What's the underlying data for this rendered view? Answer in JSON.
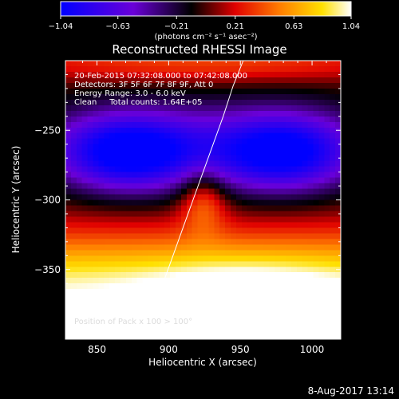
{
  "chart_data": {
    "type": "heatmap",
    "title": "Reconstructed RHESSI Image",
    "xlabel": "Heliocentric X (arcsec)",
    "ylabel": "Heliocentric Y (arcsec)",
    "xlim": [
      828,
      1020
    ],
    "ylim": [
      -400,
      -200
    ],
    "x_ticks": [
      850,
      900,
      950,
      1000
    ],
    "x_tick_labels": [
      "850",
      "900",
      "950",
      "1000"
    ],
    "y_ticks": [
      -250,
      -300,
      -350
    ],
    "y_tick_labels": [
      "−250",
      "−300",
      "−350"
    ],
    "colorbar": {
      "range": [
        -1.04,
        1.04
      ],
      "ticks": [
        -1.04,
        -0.63,
        -0.21,
        0.21,
        0.63,
        1.04
      ],
      "tick_labels": [
        "−1.04",
        "−0.63",
        "−0.21",
        "0.21",
        "0.63",
        "1.04"
      ],
      "unit_label": "(photons cm⁻² s⁻¹ asec⁻²)",
      "colormap": "blue-purple-black-red-orange-yellow-white"
    },
    "annotations": [
      "20-Feb-2015 07:32:08.000 to 07:42:08.000",
      "Detectors: 3F 5F 6F 7F 8F 9F, Att 0",
      "Energy Range: 3.0 - 6.0 keV",
      "Clean     Total counts: 1.64E+05"
    ],
    "limb_annotation": "Position of Pack x 100 > 100°",
    "limb_curve": {
      "x": [
        882,
        889,
        896,
        903,
        910,
        917,
        924,
        931,
        938,
        945,
        952
      ],
      "y": [
        -400,
        -380,
        -360,
        -340,
        -320,
        -300,
        -280,
        -260,
        -240,
        -218,
        -195
      ]
    },
    "footer_date": "8-Aug-2017 13:14"
  }
}
